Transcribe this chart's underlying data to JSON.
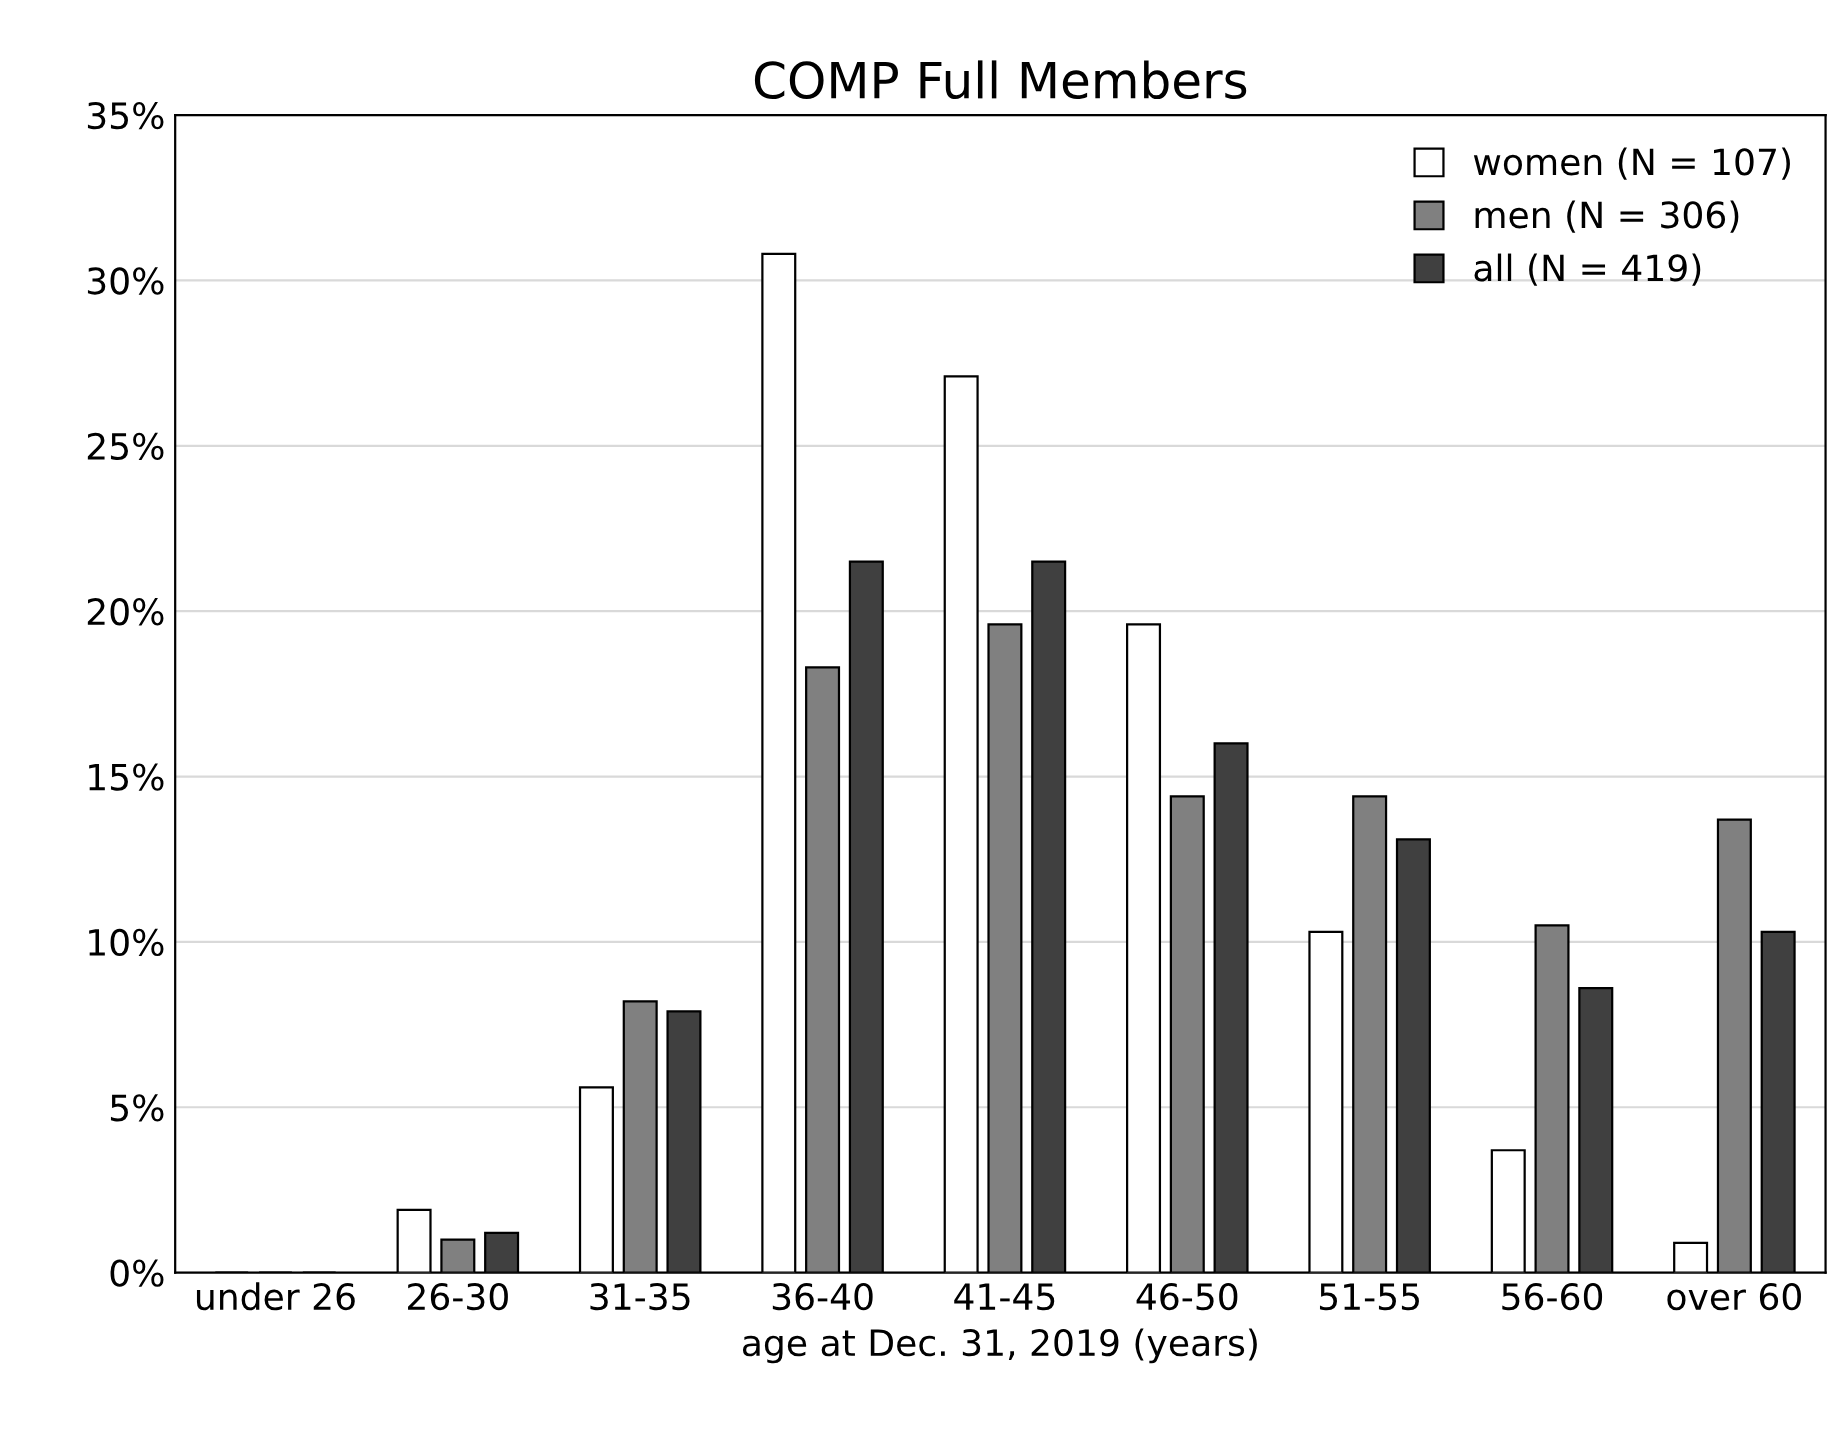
{
  "chart_data": {
    "type": "bar",
    "title": "COMP Full Members",
    "xlabel": "age at Dec. 31, 2019 (years)",
    "categories": [
      "under 26",
      "26-30",
      "31-35",
      "36-40",
      "41-45",
      "46-50",
      "51-55",
      "56-60",
      "over 60"
    ],
    "series": [
      {
        "name": "women (N = 107)",
        "color": "#ffffff",
        "values": [
          0,
          1.9,
          5.6,
          30.8,
          27.1,
          19.6,
          10.3,
          3.7,
          0.9
        ]
      },
      {
        "name": "men (N = 306)",
        "color": "#808080",
        "values": [
          0,
          1.0,
          8.2,
          18.3,
          19.6,
          14.4,
          14.4,
          10.5,
          13.7
        ]
      },
      {
        "name": "all (N = 419)",
        "color": "#404040",
        "values": [
          0,
          1.2,
          7.9,
          21.5,
          21.5,
          16.0,
          13.1,
          8.6,
          10.3
        ]
      }
    ],
    "ylim": [
      0,
      35
    ],
    "yticks": [
      {
        "value": 0,
        "label": "0%"
      },
      {
        "value": 5,
        "label": "5%"
      },
      {
        "value": 10,
        "label": "10%"
      },
      {
        "value": 15,
        "label": "15%"
      },
      {
        "value": 20,
        "label": "20%"
      },
      {
        "value": 25,
        "label": "25%"
      },
      {
        "value": 30,
        "label": "30%"
      },
      {
        "value": 35,
        "label": "35%"
      }
    ],
    "grid": "y",
    "legend": "top right"
  }
}
